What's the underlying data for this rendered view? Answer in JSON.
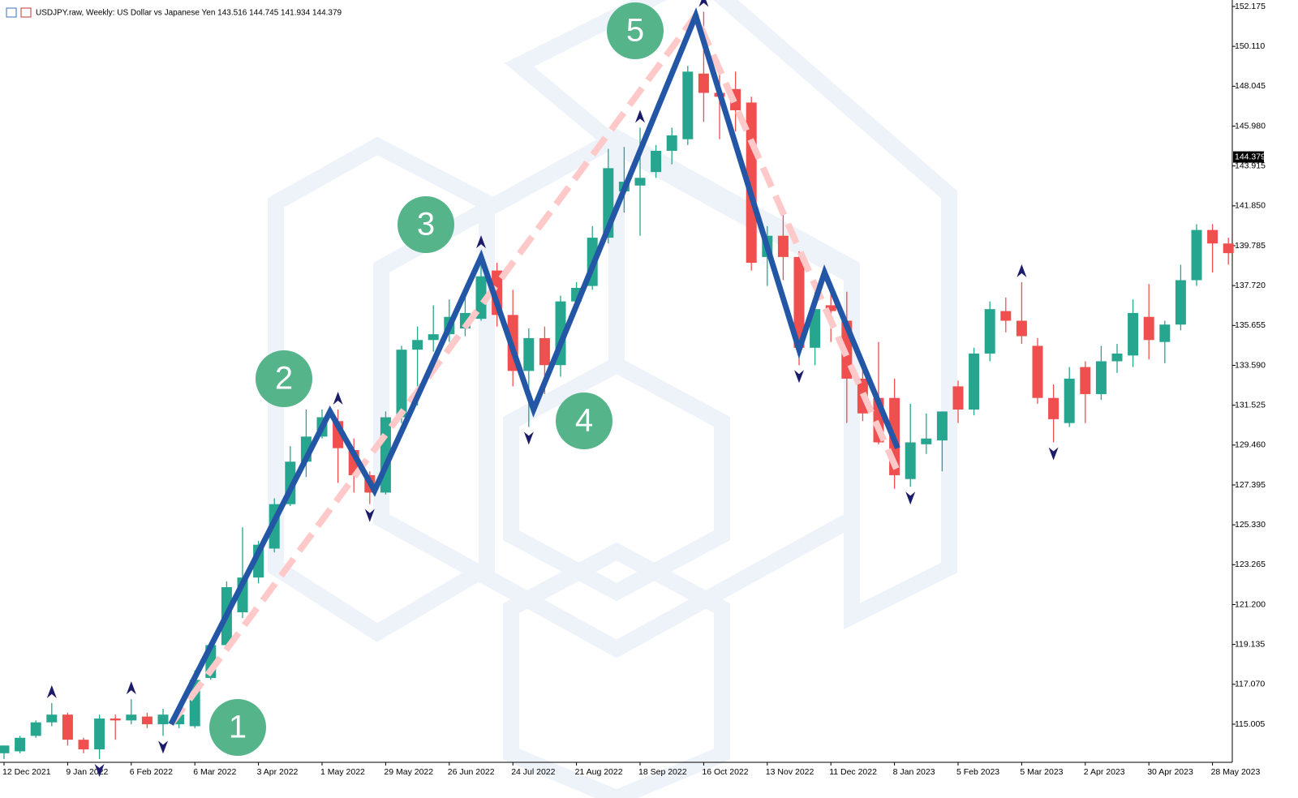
{
  "chart_data": {
    "type": "candlestick",
    "title": "USDJPY.raw, Weekly:  US Dollar vs Japanese Yen  143.516 144.745 141.934 144.379",
    "categories": [
      "12 Dec 2021",
      null,
      null,
      null,
      "9 Jan 2022",
      null,
      null,
      null,
      "6 Feb 2022",
      null,
      null,
      null,
      "6 Mar 2022",
      null,
      null,
      null,
      "3 Apr 2022",
      null,
      null,
      null,
      "1 May 2022",
      null,
      null,
      null,
      "29 May 2022",
      null,
      null,
      null,
      "26 Jun 2022",
      null,
      null,
      null,
      "24 Jul 2022",
      null,
      null,
      null,
      "21 Aug 2022",
      null,
      null,
      null,
      "18 Sep 2022",
      null,
      null,
      null,
      "16 Oct 2022",
      null,
      null,
      null,
      "13 Nov 2022",
      null,
      null,
      null,
      "11 Dec 2022",
      null,
      null,
      null,
      "8 Jan 2023",
      null,
      null,
      null,
      "5 Feb 2023",
      null,
      null,
      null,
      "5 Mar 2023",
      null,
      null,
      null,
      "2 Apr 2023",
      null,
      null,
      null,
      "30 Apr 2023",
      null,
      null,
      null,
      "28 May 2023",
      null
    ],
    "open": [
      113.5,
      113.6,
      114.4,
      115.1,
      115.5,
      114.2,
      113.7,
      115.3,
      115.2,
      115.4,
      115.0,
      115.0,
      114.9,
      117.4,
      119.1,
      120.8,
      122.6,
      124.1,
      126.4,
      128.6,
      129.9,
      130.7,
      129.2,
      127.9,
      127.0,
      130.9,
      134.4,
      134.9,
      135.2,
      135.5,
      136.0,
      138.5,
      136.2,
      133.3,
      135.0,
      133.6,
      136.9,
      137.7,
      140.2,
      142.6,
      142.9,
      143.6,
      144.7,
      145.3,
      148.7,
      147.7,
      147.9,
      147.2,
      139.2,
      140.3,
      139.2,
      134.5,
      136.7,
      135.9,
      132.9,
      131.9,
      131.9,
      127.7,
      129.5,
      129.7,
      132.5,
      131.3,
      134.2,
      136.4,
      135.9,
      134.6,
      131.9,
      130.6,
      133.5,
      132.1,
      133.8,
      134.1,
      136.1,
      134.8,
      135.7,
      138.0,
      140.6,
      139.9
    ],
    "high": [
      113.9,
      114.4,
      115.2,
      116.1,
      115.6,
      114.3,
      115.5,
      115.5,
      116.3,
      115.6,
      115.8,
      115.8,
      117.8,
      119.3,
      122.4,
      125.2,
      124.5,
      126.7,
      129.4,
      131.3,
      131.3,
      131.3,
      129.8,
      128.1,
      131.2,
      134.6,
      135.6,
      136.7,
      137.0,
      137.2,
      139.4,
      138.9,
      137.5,
      135.5,
      135.6,
      137.2,
      137.9,
      140.8,
      144.8,
      144.9,
      145.9,
      145.0,
      145.9,
      149.1,
      151.9,
      148.9,
      148.8,
      147.5,
      140.8,
      141.6,
      139.5,
      137.8,
      137.6,
      137.4,
      134.0,
      134.8,
      132.9,
      131.6,
      131.1,
      131.2,
      132.8,
      134.5,
      136.9,
      137.1,
      137.9,
      135.0,
      132.6,
      133.5,
      133.8,
      134.6,
      134.7,
      137.0,
      137.8,
      135.9,
      138.8,
      140.9,
      140.9,
      140.2
    ],
    "low": [
      113.2,
      113.5,
      114.3,
      114.9,
      113.9,
      113.5,
      113.2,
      114.2,
      115.0,
      114.8,
      114.4,
      114.8,
      114.8,
      117.3,
      118.9,
      120.5,
      122.3,
      123.9,
      126.3,
      127.8,
      129.8,
      127.5,
      127.0,
      126.4,
      126.9,
      130.6,
      131.5,
      134.3,
      134.8,
      135.1,
      135.9,
      135.6,
      132.5,
      130.4,
      132.1,
      133.0,
      136.4,
      137.5,
      139.9,
      141.5,
      140.3,
      143.3,
      144.0,
      145.0,
      146.2,
      145.3,
      145.7,
      138.5,
      137.7,
      138.0,
      133.6,
      133.6,
      134.8,
      130.6,
      130.7,
      129.5,
      127.2,
      127.3,
      129.0,
      128.1,
      130.6,
      131.0,
      133.8,
      135.3,
      134.7,
      131.6,
      129.6,
      130.4,
      130.6,
      131.8,
      133.2,
      133.5,
      133.9,
      133.7,
      135.4,
      137.7,
      138.4,
      138.8
    ],
    "close": [
      113.9,
      114.3,
      115.1,
      115.5,
      114.2,
      113.7,
      115.3,
      115.2,
      115.5,
      115.0,
      115.5,
      115.5,
      117.3,
      119.1,
      122.1,
      122.6,
      124.3,
      126.4,
      128.6,
      129.9,
      130.9,
      129.3,
      127.9,
      127.0,
      130.9,
      134.4,
      134.9,
      135.2,
      136.1,
      136.3,
      138.2,
      136.2,
      133.3,
      135.0,
      133.6,
      136.9,
      137.6,
      140.2,
      143.8,
      143.1,
      143.3,
      144.7,
      145.5,
      148.8,
      147.7,
      147.5,
      146.8,
      138.9,
      140.3,
      139.2,
      134.5,
      136.5,
      136.4,
      132.9,
      131.1,
      129.6,
      127.9,
      129.6,
      129.8,
      131.2,
      131.3,
      134.2,
      136.5,
      135.9,
      135.1,
      131.9,
      130.8,
      132.9,
      132.1,
      133.8,
      134.2,
      136.3,
      134.9,
      135.7,
      138.0,
      140.6,
      139.9,
      139.4
    ],
    "up_color": "#26a68f",
    "down_color": "#ef4f4f",
    "fractals_up": [
      3,
      8,
      21,
      30,
      40,
      44,
      64
    ],
    "fractals_down": [
      6,
      10,
      23,
      33,
      50,
      57,
      66
    ],
    "fractal_color": "#1c1c6b",
    "zigzag": {
      "color": "#2456a6",
      "x": [
        10.5,
        20.5,
        23.3,
        30,
        33.3,
        43.5,
        50,
        51.6,
        56.2
      ],
      "values": [
        115.0,
        131.2,
        127.1,
        139.2,
        131.3,
        151.7,
        134.4,
        138.4,
        129.3
      ]
    },
    "trend": {
      "color": "#ffc9c9",
      "x": [
        10.5,
        43.5,
        56.3
      ],
      "values": [
        115.0,
        151.7,
        127.9
      ]
    },
    "wave_labels": [
      "1",
      "2",
      "3",
      "4",
      "5"
    ],
    "wave_color": "#55b48a",
    "last_price": 144.379,
    "ylim": [
      113.03,
      152.51
    ],
    "yticks": [
      152.175,
      {
        "value": 150.11,
        "label": "150.110"
      },
      148.045,
      {
        "value": 145.98,
        "label": "145.980"
      },
      143.915,
      {
        "value": 141.85,
        "label": "141.850"
      },
      139.785,
      {
        "value": 137.72,
        "label": "137.720"
      },
      135.655,
      {
        "value": 133.59,
        "label": "133.590"
      },
      131.525,
      {
        "value": 129.46,
        "label": "129.460"
      },
      127.395,
      {
        "value": 125.33,
        "label": "125.330"
      },
      123.265,
      {
        "value": 121.2,
        "label": "121.200"
      },
      119.135,
      {
        "value": 117.07,
        "label": "117.070"
      },
      115.005
    ]
  }
}
